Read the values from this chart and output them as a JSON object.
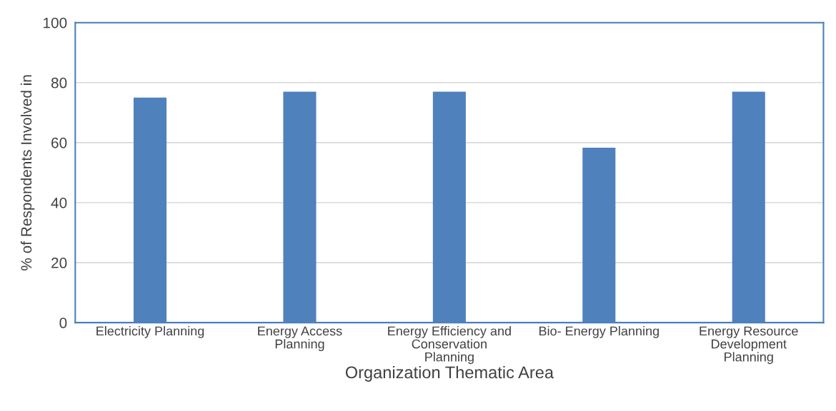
{
  "chart_data": {
    "type": "bar",
    "xlabel": "Organization Thematic Area",
    "ylabel": "% of Respondents Involved in",
    "categories": [
      "Electricity Planning",
      "Energy Access\nPlanning",
      "Energy Efficiency and\nConservation\nPlanning",
      "Bio- Energy Planning",
      "Energy Resource\nDevelopment\nPlanning"
    ],
    "values": [
      75,
      77,
      77,
      58.3,
      77
    ],
    "color": "#4f81bd",
    "ylim": [
      0,
      100
    ],
    "yticks": [
      0,
      20,
      40,
      60,
      80,
      100
    ],
    "grid": "y",
    "legend": false
  }
}
